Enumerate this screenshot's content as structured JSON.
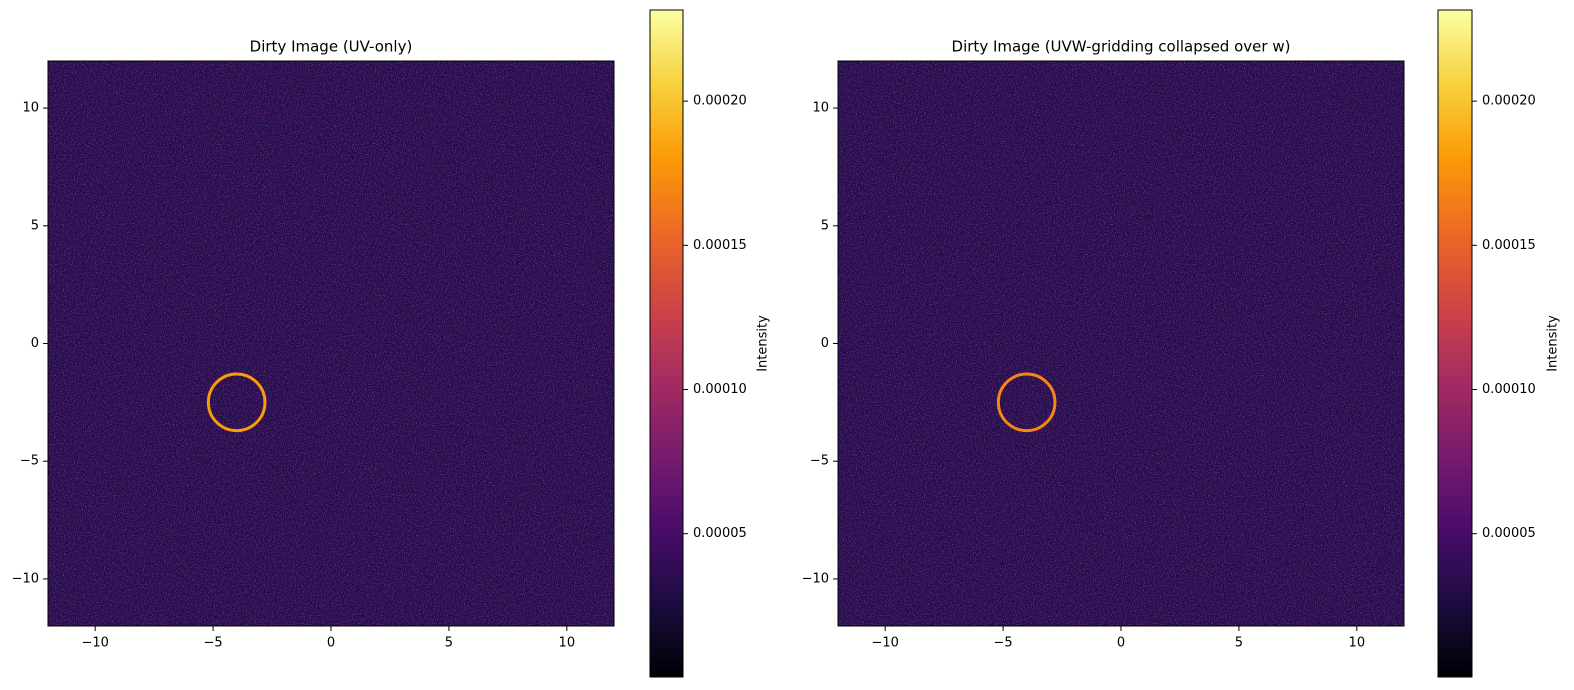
{
  "chart_data": [
    {
      "type": "image",
      "title": "Dirty Image (UV-only)",
      "colormap": "inferno",
      "xlim": [
        -12,
        12
      ],
      "ylim": [
        -12,
        12
      ],
      "xticks": [
        {
          "value": -10,
          "label": "−10"
        },
        {
          "value": -5,
          "label": "−5"
        },
        0,
        5,
        10
      ],
      "yticks": [
        {
          "value": -10,
          "label": "−10"
        },
        {
          "value": -5,
          "label": "−5"
        },
        0,
        5,
        10
      ],
      "background": 3e-05,
      "ring": {
        "x": -4,
        "y": -2.5,
        "r": 1.2,
        "value": 0.00018
      },
      "colorbar": {
        "label": "Intensity",
        "clim": [
          3e-07,
          0.0002316
        ],
        "ticks": [
          {
            "value": 5e-05,
            "label": "0.00005"
          },
          {
            "value": 0.0001,
            "label": "0.00010"
          },
          {
            "value": 0.00015,
            "label": "0.00015"
          },
          {
            "value": 0.0002,
            "label": "0.00020"
          }
        ]
      }
    },
    {
      "type": "image",
      "title": "Dirty Image (UVW-gridding collapsed over w)",
      "colormap": "inferno",
      "xlim": [
        -12,
        12
      ],
      "ylim": [
        -12,
        12
      ],
      "xticks": [
        {
          "value": -10,
          "label": "−10"
        },
        {
          "value": -5,
          "label": "−5"
        },
        0,
        5,
        10
      ],
      "yticks": [
        {
          "value": -10,
          "label": "−10"
        },
        {
          "value": -5,
          "label": "−5"
        },
        0,
        5,
        10
      ],
      "background": 3e-05,
      "ring": {
        "x": -4,
        "y": -2.5,
        "r": 1.2,
        "value": 0.00017
      },
      "colorbar": {
        "label": "Intensity",
        "clim": [
          3e-07,
          0.0002316
        ],
        "ticks": [
          {
            "value": 5e-05,
            "label": "0.00005"
          },
          {
            "value": 0.0001,
            "label": "0.00010"
          },
          {
            "value": 0.00015,
            "label": "0.00015"
          },
          {
            "value": 0.0002,
            "label": "0.00020"
          }
        ]
      }
    }
  ]
}
